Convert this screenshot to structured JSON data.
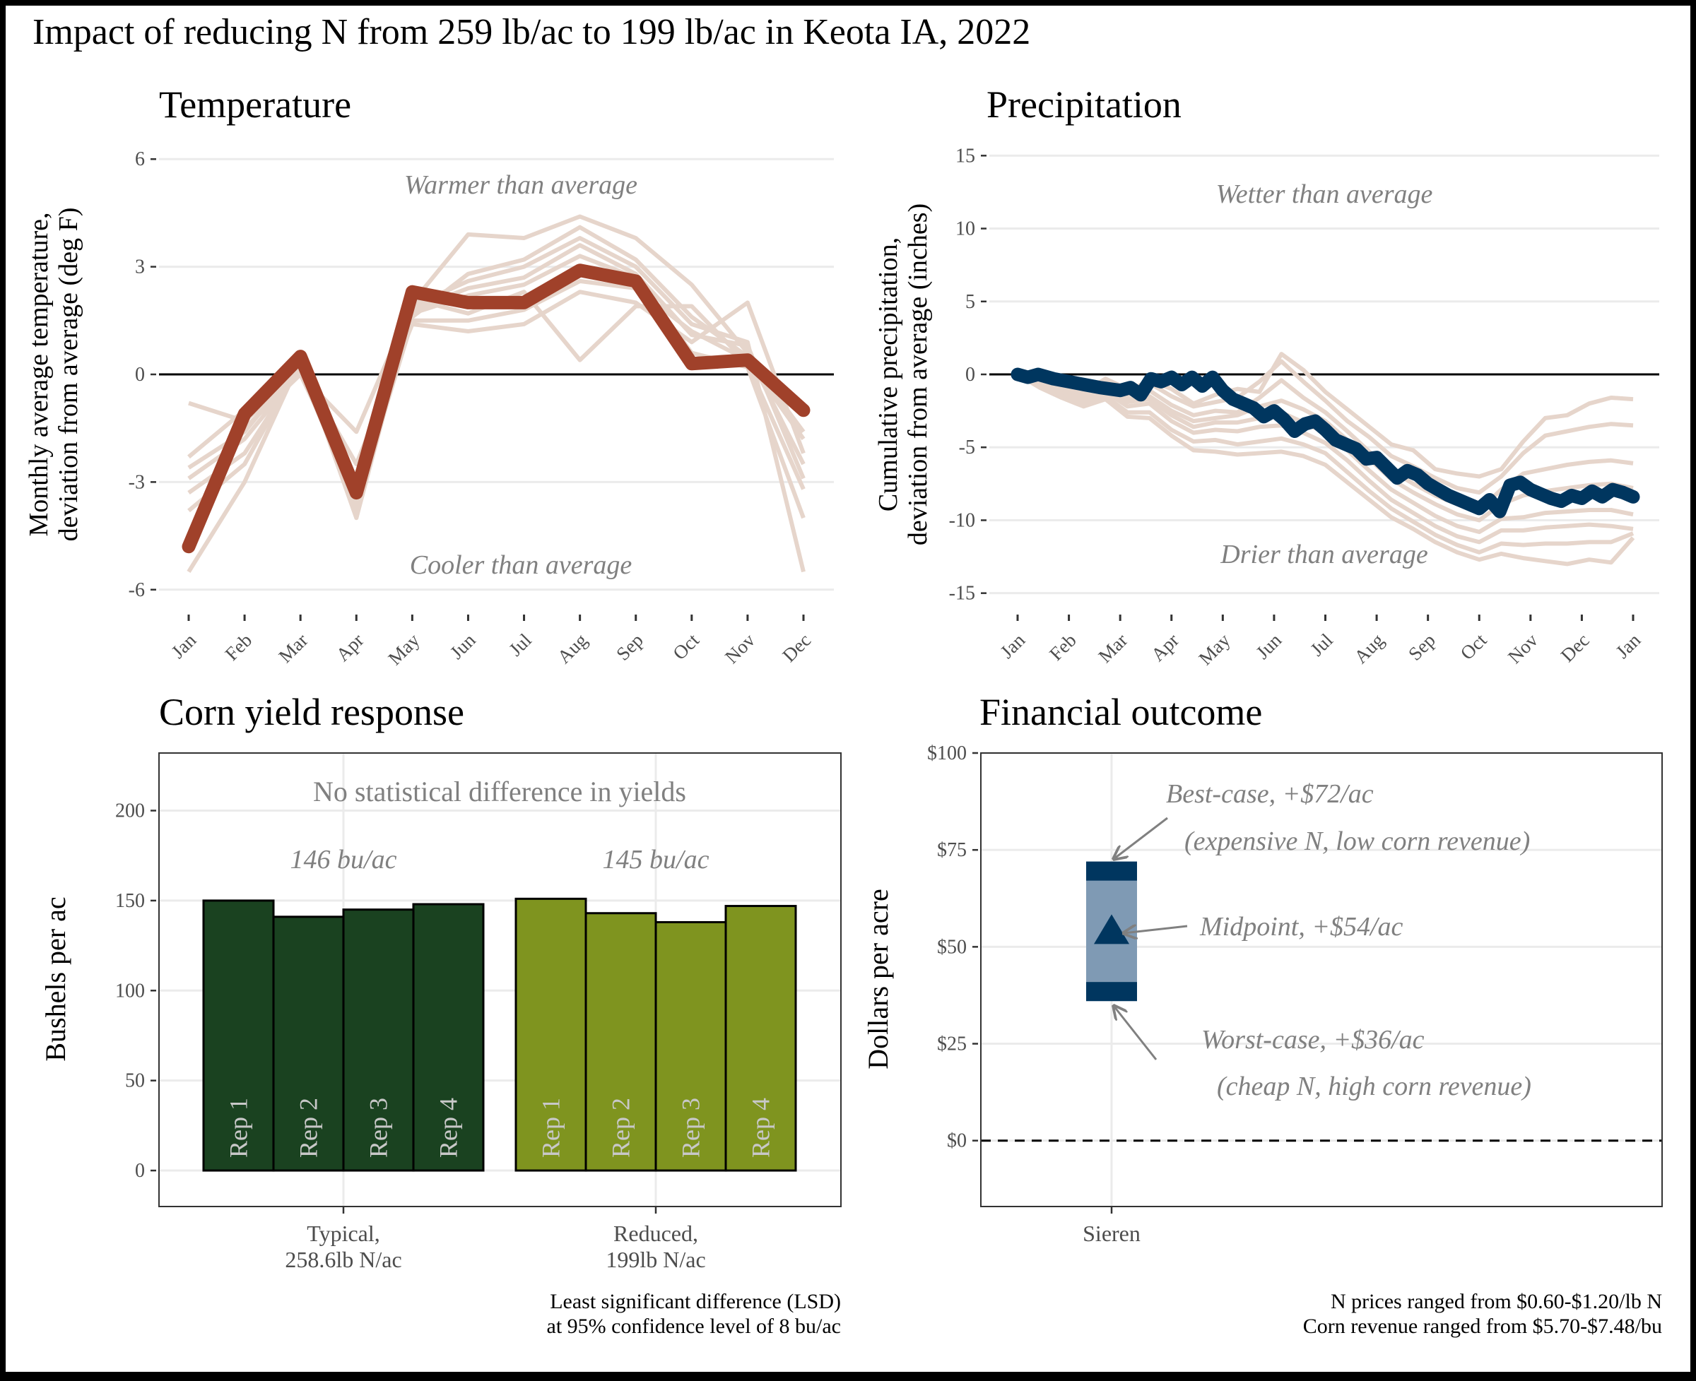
{
  "title": "Impact of reducing N from 259 lb/ac to 199 lb/ac in Keota IA, 2022",
  "colors": {
    "frame": "#000000",
    "background": "#ffffff",
    "grid": "#ebebeb",
    "history_lines": "#e6d5cb",
    "temperature_line": "#a0412a",
    "precip_line": "#00365f",
    "typical_bars": "#1a4220",
    "reduced_bars": "#7f941f",
    "range_box": "#7f9ab4",
    "range_ends": "#00365f",
    "annotation": "#808080"
  },
  "chart_data": [
    {
      "id": "temperature",
      "type": "line",
      "title": "Temperature",
      "ylabel": [
        "Monthly average temperature,",
        "deviation from average (deg F)"
      ],
      "xlabel": "",
      "x": [
        "Jan",
        "Feb",
        "Mar",
        "Apr",
        "May",
        "Jun",
        "Jul",
        "Aug",
        "Sep",
        "Oct",
        "Nov",
        "Dec"
      ],
      "ylim": [
        -6.3,
        6.3
      ],
      "yticks": [
        6,
        3,
        0,
        -3,
        -6
      ],
      "ytick_labels": [
        "6",
        "3",
        "0",
        "-3",
        "-6"
      ],
      "zero_line": true,
      "grid": true,
      "annotations": {
        "top": "Warmer than average",
        "bottom": "Cooler than average"
      },
      "series": [
        {
          "role": "2022",
          "values": [
            -4.8,
            -1.1,
            0.5,
            -3.3,
            2.3,
            2.0,
            2.0,
            2.9,
            2.6,
            0.3,
            0.4,
            -1.0
          ]
        }
      ],
      "history_series": [
        [
          -0.8,
          -1.3,
          0.0,
          -1.6,
          2.0,
          3.9,
          3.8,
          4.4,
          3.8,
          2.5,
          0.6,
          -2.5
        ],
        [
          -2.6,
          -1.6,
          0.3,
          -3.0,
          1.6,
          2.8,
          3.2,
          4.1,
          3.2,
          1.6,
          0.5,
          -1.6
        ],
        [
          -3.3,
          -2.2,
          0.2,
          -3.5,
          1.8,
          2.4,
          2.7,
          3.6,
          2.8,
          1.1,
          0.8,
          -2.9
        ],
        [
          -5.5,
          -3.0,
          0.4,
          -4.0,
          1.9,
          2.6,
          3.0,
          3.8,
          3.0,
          1.4,
          0.9,
          -5.5
        ],
        [
          -2.3,
          -1.0,
          0.2,
          -2.5,
          1.4,
          1.2,
          1.4,
          2.3,
          2.0,
          0.9,
          2.0,
          -2.2
        ],
        [
          -4.5,
          -1.5,
          0.0,
          -3.3,
          2.1,
          1.7,
          2.3,
          0.4,
          1.9,
          1.9,
          0.3,
          -3.2
        ],
        [
          -2.9,
          -1.8,
          0.1,
          -3.6,
          1.5,
          1.5,
          1.8,
          2.6,
          2.4,
          1.2,
          0.4,
          -1.8
        ],
        [
          -3.8,
          -2.5,
          0.3,
          -3.8,
          1.7,
          2.2,
          2.5,
          3.3,
          2.7,
          0.6,
          0.2,
          -4.0
        ]
      ]
    },
    {
      "id": "precipitation",
      "type": "line",
      "title": "Precipitation",
      "ylabel": [
        "Cumulative precipitation,",
        "deviation from average (inches)"
      ],
      "xlabel": "",
      "x": [
        "Jan",
        "Feb",
        "Mar",
        "Apr",
        "May",
        "Jun",
        "Jul",
        "Aug",
        "Sep",
        "Oct",
        "Nov",
        "Dec",
        "Jan"
      ],
      "ylim": [
        -15.5,
        15.5
      ],
      "yticks": [
        15,
        10,
        5,
        0,
        -5,
        -10,
        -15
      ],
      "ytick_labels": [
        "15",
        "10",
        "5",
        "0",
        "-5",
        "-10",
        "-15"
      ],
      "zero_line": true,
      "grid": true,
      "annotations": {
        "top": "Wetter than average",
        "bottom": "Drier than average"
      },
      "series": [
        {
          "role": "2022",
          "x": [
            0,
            0.2,
            0.4,
            0.7,
            1.0,
            1.3,
            1.6,
            2.0,
            2.2,
            2.4,
            2.6,
            2.8,
            3.0,
            3.2,
            3.4,
            3.6,
            3.8,
            4.0,
            4.2,
            4.4,
            4.6,
            4.8,
            5.0,
            5.2,
            5.4,
            5.6,
            5.8,
            6.0,
            6.2,
            6.4,
            6.6,
            6.8,
            7.0,
            7.2,
            7.4,
            7.6,
            7.8,
            8.0,
            8.2,
            8.4,
            8.6,
            8.8,
            9.0,
            9.2,
            9.4,
            9.6,
            9.8,
            10.0,
            10.2,
            10.4,
            10.6,
            10.8,
            11.0,
            11.2,
            11.4,
            11.6,
            11.8,
            12.0
          ],
          "values": [
            0,
            -0.2,
            0.0,
            -0.3,
            -0.5,
            -0.7,
            -0.9,
            -1.1,
            -0.9,
            -1.4,
            -0.3,
            -0.5,
            -0.2,
            -0.7,
            -0.2,
            -0.8,
            -0.2,
            -1.1,
            -1.7,
            -2.0,
            -2.3,
            -2.9,
            -2.5,
            -3.1,
            -3.9,
            -3.4,
            -3.2,
            -3.8,
            -4.5,
            -4.8,
            -5.1,
            -5.8,
            -5.7,
            -6.4,
            -7.1,
            -6.6,
            -6.9,
            -7.5,
            -7.9,
            -8.3,
            -8.6,
            -8.9,
            -9.2,
            -8.6,
            -9.4,
            -7.6,
            -7.4,
            -7.9,
            -8.2,
            -8.5,
            -8.7,
            -8.3,
            -8.5,
            -8.0,
            -8.4,
            -7.9,
            -8.1,
            -8.4
          ]
        }
      ],
      "history_series": [
        [
          0,
          -0.4,
          -0.9,
          -1.3,
          -0.6,
          -1.2,
          -0.4,
          -1.0,
          -2.0,
          -1.4,
          -1.0,
          -1.2,
          1.4,
          0.3,
          -1.2,
          -2.4,
          -3.6,
          -4.8,
          -5.2,
          -6.5,
          -6.8,
          -7.0,
          -6.5,
          -4.6,
          -3.0,
          -2.8,
          -2.0,
          -1.6,
          -1.7
        ],
        [
          0,
          -0.3,
          -0.8,
          -1.2,
          -0.3,
          -1.0,
          -0.6,
          -1.5,
          -2.2,
          -1.9,
          -1.6,
          -0.5,
          0.9,
          -0.5,
          -1.8,
          -3.2,
          -4.3,
          -5.6,
          -6.3,
          -7.1,
          -7.8,
          -8.1,
          -7.0,
          -5.4,
          -4.2,
          -3.9,
          -3.6,
          -3.4,
          -3.5
        ],
        [
          0,
          -0.2,
          -0.7,
          -1.0,
          -0.5,
          -1.4,
          -1.1,
          -2.1,
          -2.8,
          -2.5,
          -2.6,
          -1.6,
          -0.4,
          -1.6,
          -2.6,
          -3.9,
          -5.3,
          -6.6,
          -7.5,
          -8.3,
          -8.9,
          -9.3,
          -7.9,
          -6.8,
          -6.5,
          -6.2,
          -6.0,
          -5.9,
          -6.1
        ],
        [
          0,
          -0.5,
          -1.0,
          -1.4,
          -0.8,
          -1.7,
          -1.5,
          -2.5,
          -3.2,
          -3.0,
          -2.8,
          -2.2,
          -1.8,
          -2.4,
          -3.2,
          -4.5,
          -5.8,
          -7.2,
          -8.1,
          -8.9,
          -9.6,
          -10.0,
          -8.9,
          -8.3,
          -8.0,
          -7.8,
          -7.6,
          -7.5,
          -7.8
        ],
        [
          0,
          -0.6,
          -1.2,
          -1.6,
          -1.0,
          -1.9,
          -1.7,
          -2.8,
          -3.6,
          -3.3,
          -3.3,
          -3.0,
          -2.6,
          -3.3,
          -4.0,
          -5.2,
          -6.6,
          -7.9,
          -8.8,
          -9.7,
          -10.4,
          -10.8,
          -9.9,
          -9.8,
          -9.5,
          -9.4,
          -9.3,
          -9.3,
          -9.6
        ],
        [
          0,
          -0.7,
          -1.3,
          -1.8,
          -1.2,
          -2.2,
          -2.0,
          -3.2,
          -4.0,
          -3.8,
          -3.9,
          -3.6,
          -3.5,
          -4.0,
          -4.7,
          -5.9,
          -7.3,
          -8.6,
          -9.5,
          -10.4,
          -11.1,
          -11.5,
          -10.7,
          -10.7,
          -10.5,
          -10.4,
          -10.3,
          -10.4,
          -10.6
        ],
        [
          0,
          -0.8,
          -1.5,
          -2.0,
          -1.5,
          -2.6,
          -2.6,
          -3.8,
          -4.6,
          -4.5,
          -4.8,
          -4.6,
          -4.4,
          -4.8,
          -5.4,
          -6.7,
          -8.0,
          -9.2,
          -10.1,
          -11.0,
          -11.7,
          -12.2,
          -11.6,
          -11.7,
          -11.6,
          -11.6,
          -11.5,
          -11.5,
          -10.9
        ],
        [
          0,
          -0.9,
          -1.6,
          -2.2,
          -1.7,
          -2.9,
          -3.0,
          -4.2,
          -5.2,
          -5.3,
          -5.5,
          -5.4,
          -5.3,
          -5.6,
          -6.2,
          -7.4,
          -8.6,
          -9.8,
          -10.6,
          -11.5,
          -12.2,
          -12.7,
          -12.3,
          -12.6,
          -12.8,
          -13.0,
          -12.7,
          -12.9,
          -11.2
        ]
      ]
    },
    {
      "id": "yield",
      "type": "bar",
      "title": "Corn yield response",
      "ylabel": "Bushels per ac",
      "xlabel": "",
      "ylim": [
        -20,
        232
      ],
      "yticks": [
        200,
        150,
        100,
        50,
        0
      ],
      "ytick_labels": [
        "200",
        "150",
        "100",
        "50",
        "0"
      ],
      "grid": true,
      "header": "No statistical difference in yields",
      "groups": [
        {
          "label": [
            "Typical,",
            "258.6lb N/ac"
          ],
          "mean_label": "146 bu/ac",
          "categories": [
            "Rep 1",
            "Rep 2",
            "Rep 3",
            "Rep 4"
          ],
          "values": [
            150,
            141,
            145,
            148
          ]
        },
        {
          "label": [
            "Reduced,",
            "199lb N/ac"
          ],
          "mean_label": "145 bu/ac",
          "categories": [
            "Rep 1",
            "Rep 2",
            "Rep 3",
            "Rep 4"
          ],
          "values": [
            151,
            143,
            138,
            147
          ]
        }
      ],
      "footnote": [
        "Least significant difference (LSD)",
        "at 95% confidence level of 8 bu/ac"
      ]
    },
    {
      "id": "financial",
      "type": "range",
      "title": "Financial outcome",
      "ylabel": "Dollars per acre",
      "xlabel": "",
      "categories": [
        "Sieren"
      ],
      "ylim": [
        -17,
        100
      ],
      "yticks": [
        100,
        75,
        50,
        25,
        0
      ],
      "ytick_labels": [
        "$100",
        "$75",
        "$50",
        "$25",
        "$0"
      ],
      "grid": true,
      "zero_line": "dashed",
      "best_case": 72,
      "midpoint": 54,
      "worst_case": 36,
      "annotations": {
        "best": [
          "Best-case, +$72/ac",
          "(expensive N, low corn revenue)"
        ],
        "mid": "Midpoint, +$54/ac",
        "worst": [
          "Worst-case, +$36/ac",
          "(cheap N,  high corn revenue)"
        ]
      },
      "footnote": [
        "N prices ranged from $0.60-$1.20/lb N",
        "Corn revenue ranged from $5.70-$7.48/bu"
      ]
    }
  ]
}
